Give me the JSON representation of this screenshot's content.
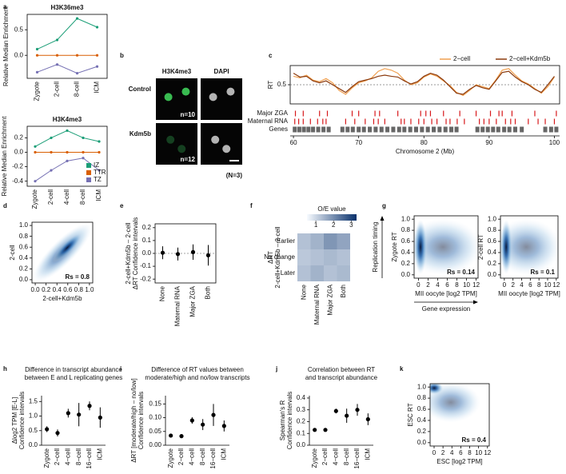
{
  "chart_data": [
    {
      "type": "line",
      "label": "a",
      "title": [
        "H3K36me3"
      ],
      "y_label": [
        "Relative Median Enrichment"
      ],
      "categories": [
        "Zygote",
        "2-cell",
        "8-cell",
        "ICM"
      ],
      "ylim": [
        -0.45,
        0.8
      ],
      "yticks": [
        {
          "value": 0,
          "label": "0.0"
        },
        0.5
      ],
      "series": [
        {
          "color": "#1b9e77",
          "values": [
            0.12,
            0.3,
            0.72,
            0.55
          ]
        },
        {
          "color": "#d95f02",
          "values": [
            0,
            0,
            0,
            0
          ]
        },
        {
          "color": "#7570b3",
          "values": [
            -0.33,
            -0.18,
            -0.35,
            -0.22
          ]
        }
      ]
    },
    {
      "type": "line",
      "title": [
        "H3K4me3"
      ],
      "y_label": [
        "Relative Median Enrichment"
      ],
      "categories": [
        "Zygote",
        "2-cell",
        "4-cell",
        "8-cell",
        "ICM"
      ],
      "ylim": [
        -0.47,
        0.36
      ],
      "yticks": [
        -0.4,
        -0.2,
        {
          "value": 0,
          "label": "0.0"
        },
        0.2
      ],
      "legend": "lower right",
      "series": [
        {
          "name": "IZ",
          "color": "#1b9e77",
          "values": [
            0.08,
            0.2,
            0.3,
            0.2,
            0.15
          ]
        },
        {
          "name": "TTR",
          "color": "#d95f02",
          "values": [
            0,
            0,
            0,
            0,
            0
          ]
        },
        {
          "name": "TZ",
          "color": "#7570b3",
          "values": [
            -0.4,
            -0.25,
            -0.12,
            -0.08,
            -0.25
          ]
        }
      ]
    },
    {
      "type": "image",
      "label": "b",
      "columns": [
        "H3K4me3",
        "DAPI"
      ],
      "rows": [
        "Control",
        "Kdm5b"
      ],
      "counts": [
        "n=10",
        "n=12"
      ],
      "note": "(N=3)"
    },
    {
      "type": "line",
      "label": "c",
      "x_label": "Chromosome 2 (Mb)",
      "y_label": [
        "RT"
      ],
      "xlim": [
        59.5,
        100.8
      ],
      "xticks": [
        60,
        70,
        80,
        90,
        100
      ],
      "ylim": [
        0,
        1
      ],
      "yticks": [
        0.5
      ],
      "grid": true,
      "legend": "upper right",
      "x": [
        60,
        61,
        62,
        63,
        64,
        65,
        66,
        67,
        68,
        69,
        70,
        71,
        72,
        73,
        74,
        75,
        76,
        77,
        78,
        79,
        80,
        81,
        82,
        83,
        84,
        85,
        86,
        87,
        88,
        89,
        90,
        91,
        92,
        93,
        94,
        95,
        96,
        97,
        98,
        99,
        100
      ],
      "series": [
        {
          "name": "2−cell",
          "color": "#f0a050",
          "values": [
            0.72,
            0.68,
            0.75,
            0.62,
            0.58,
            0.66,
            0.55,
            0.35,
            0.25,
            0.42,
            0.55,
            0.6,
            0.68,
            0.85,
            0.92,
            0.88,
            0.8,
            0.62,
            0.5,
            0.55,
            0.7,
            0.78,
            0.72,
            0.6,
            0.48,
            0.3,
            0.22,
            0.35,
            0.5,
            0.45,
            0.4,
            0.62,
            0.88,
            0.92,
            0.75,
            0.6,
            0.52,
            0.4,
            0.28,
            0.45,
            0.7
          ]
        },
        {
          "name": "2−cell+Kdm5b",
          "color": "#8b3a0e",
          "values": [
            0.8,
            0.7,
            0.72,
            0.6,
            0.55,
            0.6,
            0.5,
            0.4,
            0.3,
            0.45,
            0.58,
            0.62,
            0.66,
            0.72,
            0.75,
            0.72,
            0.7,
            0.6,
            0.52,
            0.58,
            0.72,
            0.8,
            0.75,
            0.62,
            0.45,
            0.28,
            0.25,
            0.38,
            0.48,
            0.42,
            0.38,
            0.6,
            0.82,
            0.85,
            0.7,
            0.58,
            0.5,
            0.38,
            0.3,
            0.5,
            0.72
          ]
        }
      ],
      "tracks": [
        {
          "name": "Major ZGA",
          "color": "#d7191c",
          "x": [
            60.3,
            61.5,
            64,
            65.2,
            69,
            70,
            72.5,
            73.2,
            76,
            79.5,
            80.3,
            81,
            83,
            85.5,
            88,
            90.2,
            91.5,
            92,
            93.5,
            97,
            100.3
          ]
        },
        {
          "name": "Maternal RNA",
          "color": "#d7191c",
          "x": [
            60.2,
            60.8,
            61.5,
            62.6,
            63.7,
            64.5,
            65,
            68,
            69.4,
            71,
            72.3,
            73,
            74,
            76.5,
            77,
            78,
            79.2,
            80,
            81.2,
            82,
            83.4,
            84,
            85.1,
            86.2,
            88.5,
            89.2,
            90,
            91.1,
            92.5,
            93.3,
            94,
            96,
            97.5,
            98.6,
            100
          ]
        },
        {
          "name": "Genes",
          "color": "#666666",
          "x": [
            60.2,
            60.9,
            61.6,
            62.3,
            63,
            63.8,
            64.6,
            65.4,
            67.5,
            68.3,
            69.1,
            70,
            70.8,
            71.7,
            72.6,
            73.5,
            74.4,
            75.3,
            76.2,
            77,
            77.9,
            78.8,
            79.7,
            80.6,
            81.5,
            82.4,
            83.3,
            84.2,
            85,
            88.2,
            89,
            89.8,
            90.6,
            91.4,
            92.3,
            93.1,
            94,
            95,
            98.6,
            99.5,
            100.3
          ]
        }
      ]
    },
    {
      "type": "density",
      "label": "d",
      "x_label": "2-cell+Kdm5b",
      "y_label": [
        "2-cell"
      ],
      "xlim": [
        -0.06,
        1.06
      ],
      "xticks": [
        {
          "value": 0,
          "label": "0.0"
        },
        0.2,
        0.4,
        0.6,
        0.8,
        {
          "value": 1,
          "label": "1.0"
        }
      ],
      "ylim": [
        -0.06,
        1.06
      ],
      "yticks": [
        {
          "value": 0,
          "label": "0.0"
        },
        0.2,
        0.4,
        0.6,
        0.8,
        {
          "value": 1,
          "label": "1.0"
        }
      ],
      "annotation": "Rs = 0.8"
    },
    {
      "type": "errorbar",
      "label": "e",
      "y_label": [
        "2-cell+Kdm5b – 2-cell",
        "ΔRT Confidence intervals"
      ],
      "categories": [
        "None",
        "Maternal RNA",
        "Major ZGA",
        "Both"
      ],
      "values": [
        0.005,
        -0.005,
        0.01,
        -0.015
      ],
      "errors": [
        0.05,
        0.05,
        0.06,
        0.08
      ],
      "color": "#000000",
      "zero_line": true,
      "ylim": [
        -0.23,
        0.23
      ],
      "yticks": [
        -0.2,
        -0.1,
        {
          "value": 0,
          "label": "0.0"
        },
        0.1,
        0.2
      ]
    },
    {
      "type": "heatmap",
      "label": "f",
      "y_label": [
        "ΔRT",
        "2-cell+Kdm5b – 2-cell"
      ],
      "categories": [
        "None",
        "Maternal RNA",
        "Major ZGA",
        "Both"
      ],
      "rows": [
        "Earlier",
        "No change",
        "Later"
      ],
      "values": [
        [
          1.3,
          1.5,
          1.9,
          1.7
        ],
        [
          1.2,
          1.3,
          1.4,
          1.3
        ],
        [
          1.3,
          1.5,
          1.3,
          1.4
        ]
      ],
      "colorbar_title": "O/E value",
      "clim": [
        0.5,
        3.3
      ],
      "cticks": [
        1,
        2,
        3
      ],
      "colors": [
        "#f7fbff",
        "#08306b"
      ]
    },
    {
      "type": "density",
      "label": "g",
      "x_label": "MII oocyte [log2 TPM]",
      "y_label": [
        "Zygote RT"
      ],
      "xlim": [
        -0.9,
        12.4
      ],
      "xticks": [
        0,
        2,
        4,
        6,
        8,
        10,
        12
      ],
      "ylim": [
        -0.06,
        1.06
      ],
      "yticks": [
        {
          "value": 0,
          "label": "0.0"
        },
        0.2,
        0.4,
        0.6,
        0.8,
        {
          "value": 1,
          "label": "1.0"
        }
      ],
      "annotation": "Rs = 0.14",
      "arrows": [
        "Replication timing",
        "Gene expression"
      ]
    },
    {
      "type": "density",
      "x_label": "MII oocyte [log2 TPM]",
      "y_label": [
        "2-cell RT"
      ],
      "xlim": [
        -0.9,
        12.4
      ],
      "xticks": [
        0,
        2,
        4,
        6,
        8,
        10,
        12
      ],
      "ylim": [
        -0.06,
        1.06
      ],
      "yticks": [
        {
          "value": 0,
          "label": "0.0"
        },
        0.2,
        0.4,
        0.6,
        0.8,
        {
          "value": 1,
          "label": "1.0"
        }
      ],
      "annotation": "Rs = 0.1"
    },
    {
      "type": "errorbar",
      "label": "h",
      "title": [
        "Difference in transcript abundance",
        "between E and L replicating genes"
      ],
      "y_label": [
        "Δlog2 TPM [E-L]",
        "Confidence intervals"
      ],
      "categories": [
        "Zygote",
        "2−cell",
        "4−cell",
        "8−cell",
        "16−cell",
        "ICM"
      ],
      "values": [
        0.55,
        0.42,
        1.1,
        1.05,
        1.35,
        0.95
      ],
      "errors": [
        0.1,
        0.12,
        0.15,
        0.4,
        0.15,
        0.35
      ],
      "color": "#000000",
      "ylim": [
        0,
        1.7
      ],
      "yticks": [
        {
          "value": 0,
          "label": "0.0"
        },
        0.5,
        {
          "value": 1,
          "label": "1.0"
        },
        1.5
      ]
    },
    {
      "type": "errorbar",
      "label": "i",
      "title": [
        "Difference of RT values between",
        "moderate/high and no/low transcripts"
      ],
      "y_label": [
        "ΔRT [moderate/high – no/low]",
        "Confidence intervals"
      ],
      "categories": [
        "Zygote",
        "2−cell",
        "4−cell",
        "8−cell",
        "16−cell",
        "ICM"
      ],
      "values": [
        0.035,
        0.033,
        0.09,
        0.075,
        0.11,
        0.07
      ],
      "errors": [
        0.004,
        0.007,
        0.012,
        0.02,
        0.04,
        0.02
      ],
      "color": "#000000",
      "ylim": [
        0,
        0.18
      ],
      "yticks": [
        {
          "value": 0,
          "label": "0.00"
        },
        0.05,
        {
          "value": 0.1,
          "label": "0.10"
        },
        0.15
      ]
    },
    {
      "type": "errorbar",
      "label": "j",
      "title": [
        "Correlation between RT",
        "and transcript abundance"
      ],
      "y_label": [
        "Spearman's R",
        "Confidence intervals"
      ],
      "categories": [
        "Zygote",
        "2−cell",
        "4−cell",
        "8−cell",
        "16−cell",
        "ICM"
      ],
      "values": [
        0.13,
        0.13,
        0.29,
        0.25,
        0.3,
        0.22
      ],
      "errors": [
        0.01,
        0.015,
        0.02,
        0.06,
        0.05,
        0.05
      ],
      "color": "#000000",
      "ylim": [
        0,
        0.42
      ],
      "yticks": [
        {
          "value": 0,
          "label": "0.0"
        },
        0.1,
        0.2,
        0.3,
        0.4
      ]
    },
    {
      "type": "density",
      "label": "k",
      "x_label": "ESC [log2 TPM]",
      "y_label": [
        "ESC RT"
      ],
      "xlim": [
        -0.9,
        12.4
      ],
      "xticks": [
        0,
        2,
        4,
        6,
        8,
        10,
        12
      ],
      "ylim": [
        -0.06,
        1.06
      ],
      "yticks": [
        {
          "value": 0,
          "label": "0.0"
        },
        0.2,
        0.4,
        0.6,
        0.8,
        {
          "value": 1,
          "label": "1.0"
        }
      ],
      "annotation": "Rs = 0.4"
    }
  ]
}
